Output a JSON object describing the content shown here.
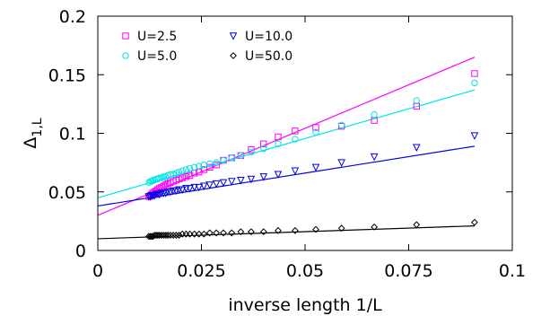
{
  "chart_data": {
    "type": "scatter",
    "xlabel": "inverse length 1/L",
    "ylabel_main": "Δ",
    "ylabel_sub": "1,L",
    "xlim": [
      0,
      0.1
    ],
    "ylim": [
      0,
      0.2
    ],
    "xticks": [
      0,
      0.025,
      0.05,
      0.075,
      0.1
    ],
    "yticks": [
      0,
      0.05,
      0.1,
      0.15,
      0.2
    ],
    "xtick_labels": [
      "0",
      "0.025",
      "0.05",
      "0.075",
      "0.1"
    ],
    "ytick_labels": [
      "0",
      "0.05",
      "0.1",
      "0.15",
      "0.2"
    ],
    "grid": false,
    "legend_position": "top-left",
    "series": [
      {
        "name": "U=2.5",
        "color": "#ff00ff",
        "marker": "square",
        "x": [
          0.0909,
          0.0769,
          0.0667,
          0.0588,
          0.0526,
          0.0476,
          0.0435,
          0.04,
          0.037,
          0.0345,
          0.0323,
          0.0303,
          0.0286,
          0.027,
          0.0256,
          0.0244,
          0.0233,
          0.0222,
          0.0213,
          0.0204,
          0.0196,
          0.0189,
          0.0182,
          0.0175,
          0.0169,
          0.0164,
          0.0159,
          0.0154,
          0.0149,
          0.0145,
          0.0141,
          0.0137,
          0.0133,
          0.013,
          0.0127,
          0.0123
        ],
        "y": [
          0.151,
          0.123,
          0.111,
          0.106,
          0.105,
          0.102,
          0.097,
          0.091,
          0.086,
          0.081,
          0.079,
          0.077,
          0.073,
          0.071,
          0.069,
          0.067,
          0.066,
          0.064,
          0.063,
          0.062,
          0.061,
          0.06,
          0.059,
          0.058,
          0.057,
          0.056,
          0.055,
          0.054,
          0.053,
          0.052,
          0.051,
          0.05,
          0.049,
          0.048,
          0.047,
          0.046
        ],
        "fit": [
          [
            0,
            0.03
          ],
          [
            0.0909,
            0.165
          ]
        ]
      },
      {
        "name": "U=5.0",
        "color": "#00e5e5",
        "marker": "circle",
        "x": [
          0.0909,
          0.0769,
          0.0667,
          0.0588,
          0.0526,
          0.0476,
          0.0435,
          0.04,
          0.037,
          0.0345,
          0.0323,
          0.0303,
          0.0286,
          0.027,
          0.0256,
          0.0244,
          0.0233,
          0.0222,
          0.0213,
          0.0204,
          0.0196,
          0.0189,
          0.0182,
          0.0175,
          0.0169,
          0.0164,
          0.0159,
          0.0154,
          0.0149,
          0.0145,
          0.0141,
          0.0137,
          0.0133,
          0.013,
          0.0127,
          0.0123
        ],
        "y": [
          0.143,
          0.128,
          0.116,
          0.107,
          0.101,
          0.095,
          0.091,
          0.087,
          0.084,
          0.081,
          0.079,
          0.077,
          0.075,
          0.074,
          0.073,
          0.072,
          0.071,
          0.07,
          0.069,
          0.068,
          0.067,
          0.066,
          0.065,
          0.065,
          0.064,
          0.063,
          0.063,
          0.062,
          0.062,
          0.061,
          0.061,
          0.06,
          0.06,
          0.059,
          0.059,
          0.058
        ],
        "fit": [
          [
            0,
            0.045
          ],
          [
            0.0909,
            0.137
          ]
        ]
      },
      {
        "name": "U=10.0",
        "color": "#0000e0",
        "marker": "triangle-down",
        "x": [
          0.0909,
          0.0769,
          0.0667,
          0.0588,
          0.0526,
          0.0476,
          0.0435,
          0.04,
          0.037,
          0.0345,
          0.0323,
          0.0303,
          0.0286,
          0.027,
          0.0256,
          0.0244,
          0.0233,
          0.0222,
          0.0213,
          0.0204,
          0.0196,
          0.0189,
          0.0182,
          0.0175,
          0.0169,
          0.0164,
          0.0159,
          0.0154,
          0.0149,
          0.0145,
          0.0141,
          0.0137,
          0.0133,
          0.013,
          0.0127,
          0.0123
        ],
        "y": [
          0.098,
          0.088,
          0.08,
          0.075,
          0.071,
          0.068,
          0.065,
          0.063,
          0.061,
          0.06,
          0.059,
          0.058,
          0.057,
          0.056,
          0.055,
          0.054,
          0.054,
          0.053,
          0.053,
          0.052,
          0.052,
          0.051,
          0.051,
          0.05,
          0.05,
          0.049,
          0.049,
          0.049,
          0.048,
          0.048,
          0.048,
          0.047,
          0.047,
          0.047,
          0.046,
          0.046
        ],
        "fit": [
          [
            0,
            0.038
          ],
          [
            0.0909,
            0.089
          ]
        ]
      },
      {
        "name": "U=50.0",
        "color": "#000000",
        "marker": "diamond",
        "x": [
          0.0909,
          0.0769,
          0.0667,
          0.0588,
          0.0526,
          0.0476,
          0.0435,
          0.04,
          0.037,
          0.0345,
          0.0323,
          0.0303,
          0.0286,
          0.027,
          0.0256,
          0.0244,
          0.0233,
          0.0222,
          0.0213,
          0.0204,
          0.0196,
          0.0189,
          0.0182,
          0.0175,
          0.0169,
          0.0164,
          0.0159,
          0.0154,
          0.0149,
          0.0145,
          0.0141,
          0.0137,
          0.0133,
          0.013,
          0.0127,
          0.0123
        ],
        "y": [
          0.024,
          0.022,
          0.02,
          0.019,
          0.018,
          0.017,
          0.017,
          0.016,
          0.016,
          0.016,
          0.015,
          0.015,
          0.015,
          0.015,
          0.014,
          0.014,
          0.014,
          0.014,
          0.014,
          0.014,
          0.013,
          0.013,
          0.013,
          0.013,
          0.013,
          0.013,
          0.013,
          0.013,
          0.013,
          0.013,
          0.013,
          0.013,
          0.012,
          0.012,
          0.012,
          0.012
        ],
        "fit": [
          [
            0,
            0.01
          ],
          [
            0.0909,
            0.021
          ]
        ]
      }
    ]
  }
}
